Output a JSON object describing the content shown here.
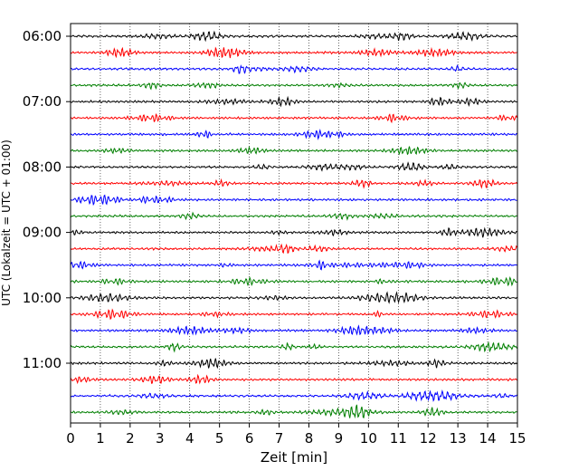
{
  "chart_data": {
    "type": "line",
    "title": "",
    "xlabel": "Zeit  [min]",
    "ylabel": "UTC (Lokalzeit = UTC + 01:00)",
    "xlim": [
      0,
      15
    ],
    "x_ticks": [
      "0",
      "1",
      "2",
      "3",
      "4",
      "5",
      "6",
      "7",
      "8",
      "9",
      "10",
      "11",
      "12",
      "13",
      "14",
      "15"
    ],
    "y_ticks": [
      "06:00",
      "07:00",
      "08:00",
      "09:00",
      "10:00",
      "11:00"
    ],
    "grid": "vertical dotted",
    "trace_interval_min": 15,
    "traces_start": "06:00",
    "trace_count": 24,
    "trace_colors": [
      "#000000",
      "#ff0000",
      "#0000ff",
      "#007f00"
    ]
  }
}
